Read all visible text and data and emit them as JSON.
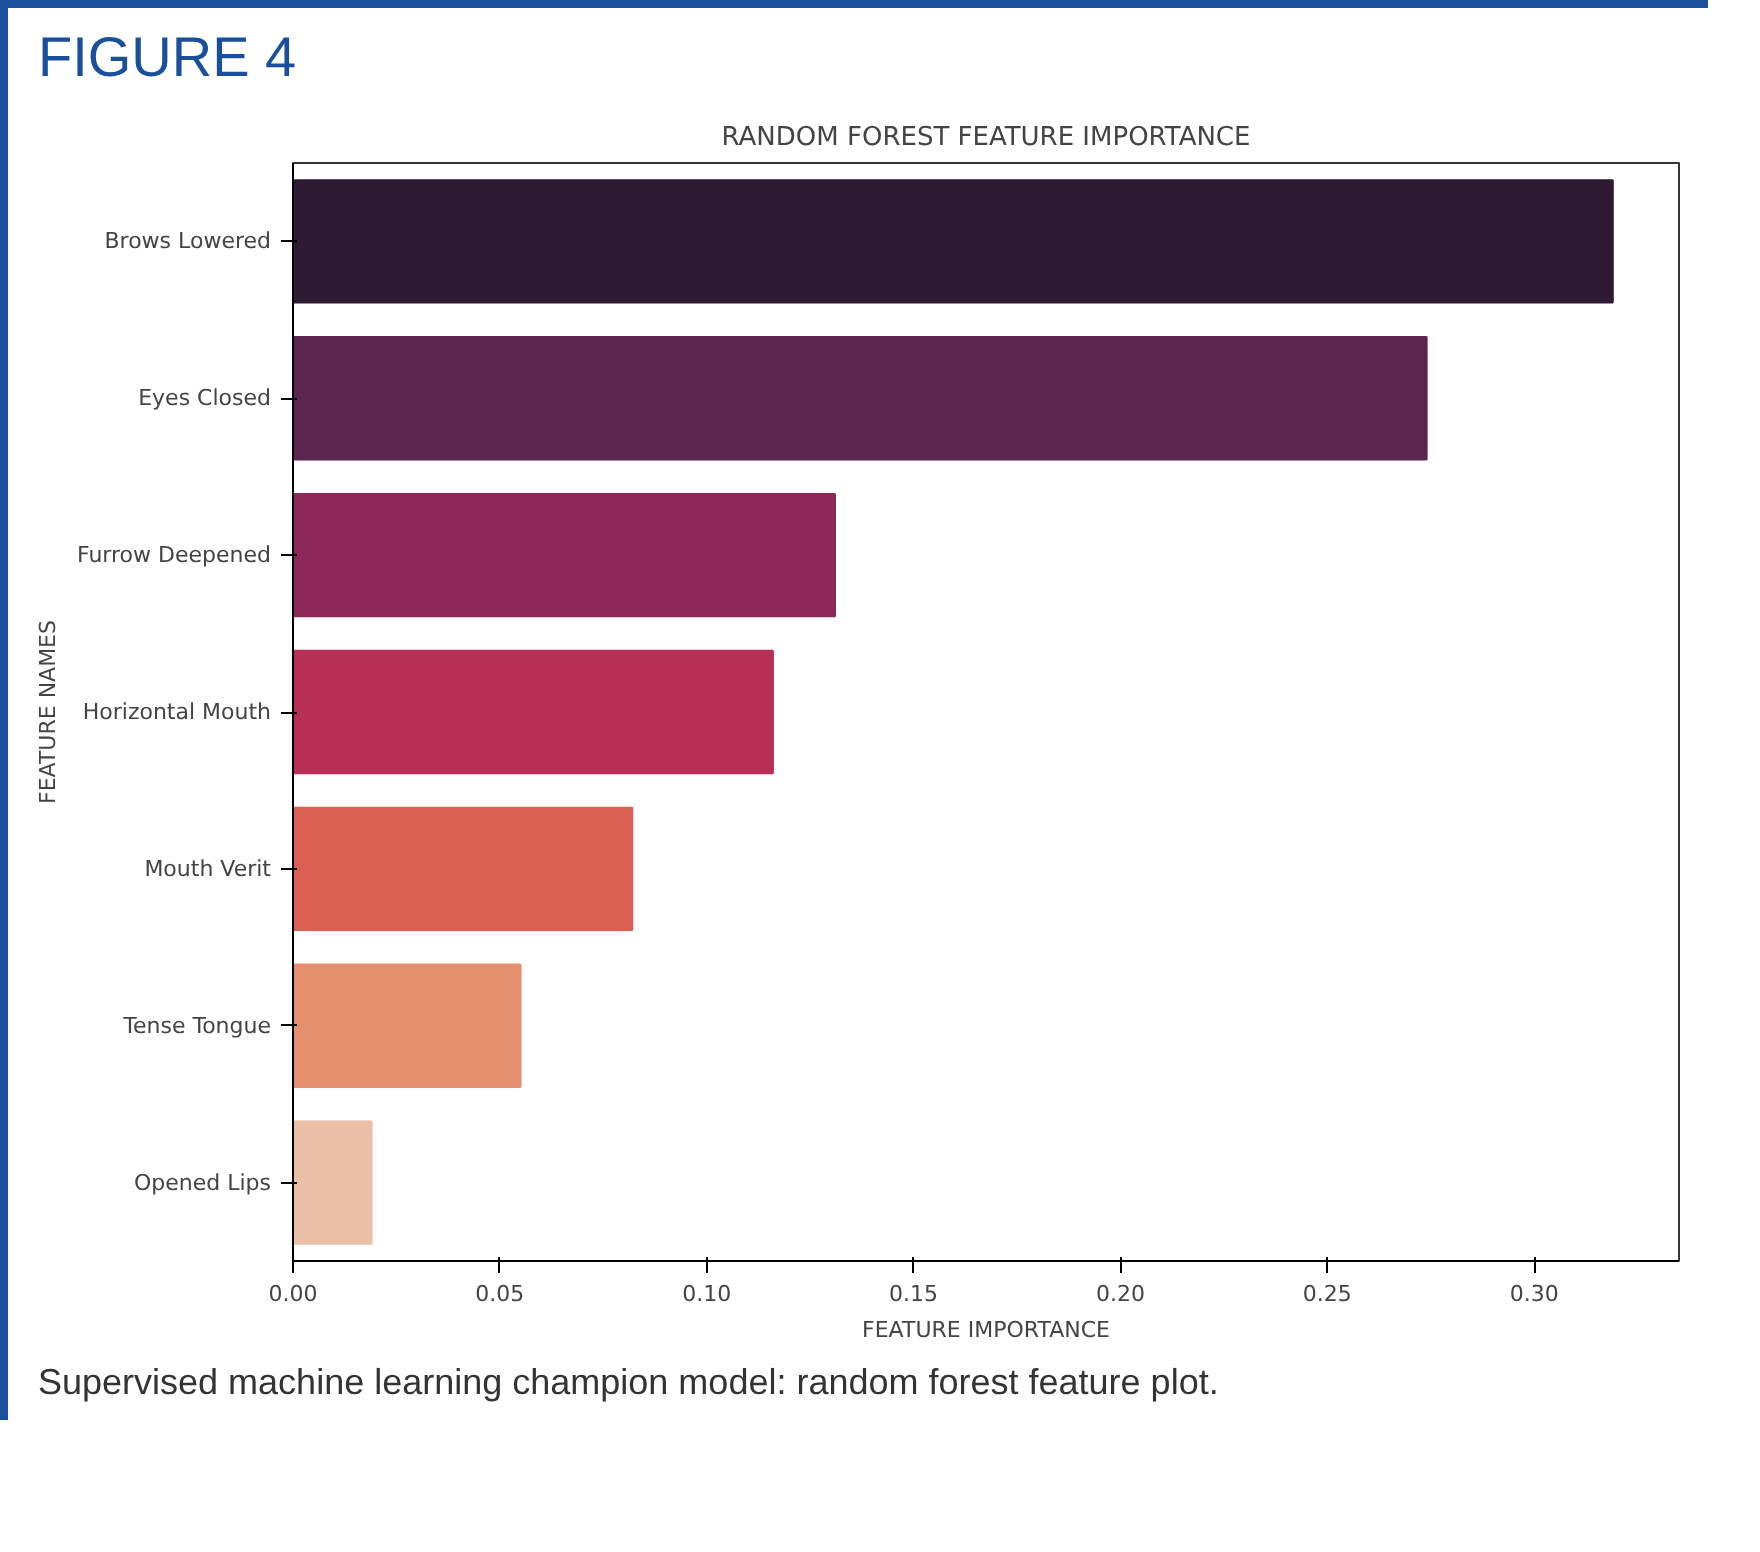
{
  "chart_data": {
    "type": "bar",
    "orientation": "horizontal",
    "title": "RANDOM FOREST FEATURE IMPORTANCE",
    "xlabel": "FEATURE IMPORTANCE",
    "ylabel": "FEATURE NAMES",
    "categories": [
      "Brows Lowered",
      "Eyes Closed",
      "Furrow Deepened",
      "Horizontal Mouth",
      "Mouth Verit",
      "Tense Tongue",
      "Opened Lips"
    ],
    "values": [
      0.319,
      0.274,
      0.131,
      0.116,
      0.082,
      0.055,
      0.019
    ],
    "colors": [
      "#2e1a33",
      "#5c2550",
      "#8b2858",
      "#b82f56",
      "#d96053",
      "#e4906f",
      "#ecc0a6"
    ],
    "xlim": [
      0,
      0.335
    ],
    "xticks": [
      {
        "value": 0,
        "label": "0.00"
      },
      {
        "value": 0.05,
        "label": "0.05"
      },
      {
        "value": 0.1,
        "label": "0.10"
      },
      {
        "value": 0.15,
        "label": "0.15"
      },
      {
        "value": 0.2,
        "label": "0.20"
      },
      {
        "value": 0.25,
        "label": "0.25"
      },
      {
        "value": 0.3,
        "label": "0.30"
      }
    ],
    "grid": false,
    "annotations": [
      "FIGURE 4",
      "Supervised machine learning champion model: random forest feature plot."
    ]
  }
}
